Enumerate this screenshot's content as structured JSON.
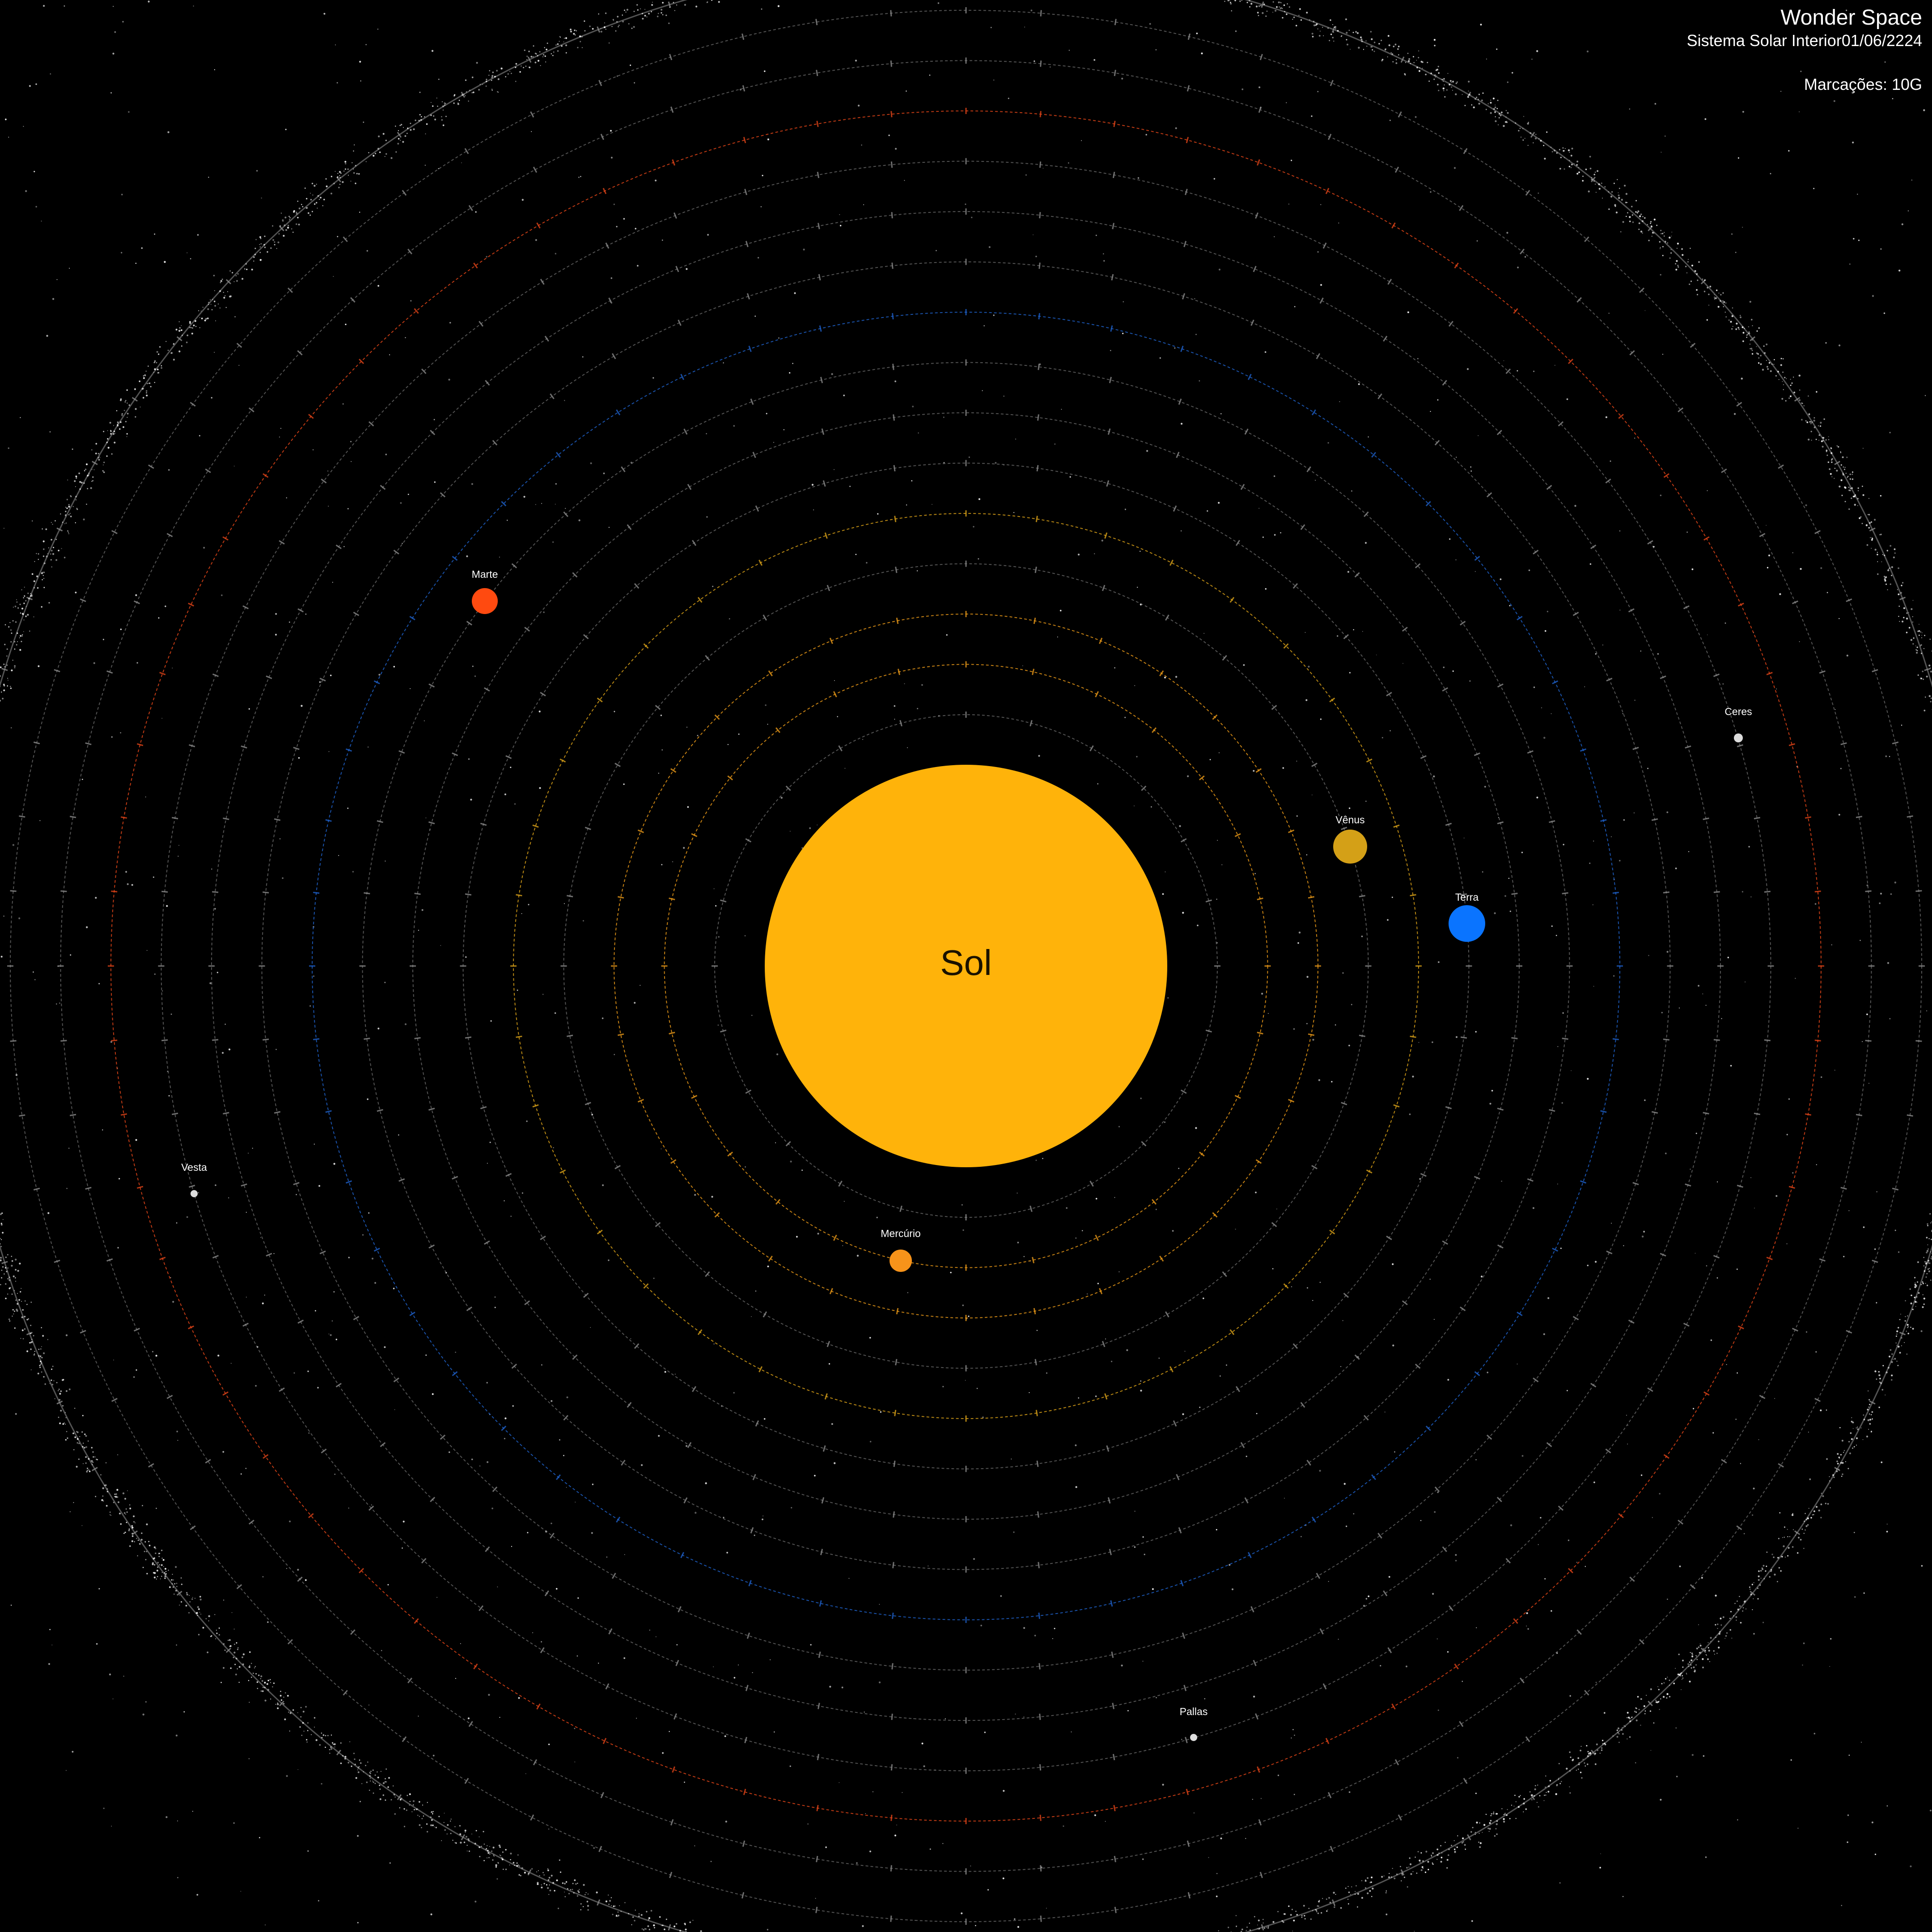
{
  "header": {
    "title": "Wonder Space",
    "subtitle": "Sistema Solar Interior",
    "date": "01/06/2224",
    "markings": "Marcações: 10G"
  },
  "sun": {
    "label": "Sol",
    "color": "#FFB30A"
  },
  "colors": {
    "background": "#000000",
    "ring_default": "#8a8a8a",
    "ring_mercury": "#E89818",
    "ring_venus": "#D8A018",
    "ring_earth": "#1E60C8",
    "ring_mars": "#E04418",
    "belt": "#ffffff"
  },
  "bodies": [
    {
      "id": "mercurio",
      "label": "Mercúrio",
      "color": "#F7931A",
      "kind": "planet"
    },
    {
      "id": "venus",
      "label": "Vênus",
      "color": "#D4A017",
      "kind": "planet"
    },
    {
      "id": "terra",
      "label": "Terra",
      "color": "#0A74FF",
      "kind": "planet"
    },
    {
      "id": "marte",
      "label": "Marte",
      "color": "#FF4A10",
      "kind": "planet"
    },
    {
      "id": "ceres",
      "label": "Ceres",
      "color": "#dddddd",
      "kind": "asteroid"
    },
    {
      "id": "vesta",
      "label": "Vesta",
      "color": "#dddddd",
      "kind": "asteroid"
    },
    {
      "id": "pallas",
      "label": "Pallas",
      "color": "#dddddd",
      "kind": "asteroid"
    }
  ]
}
